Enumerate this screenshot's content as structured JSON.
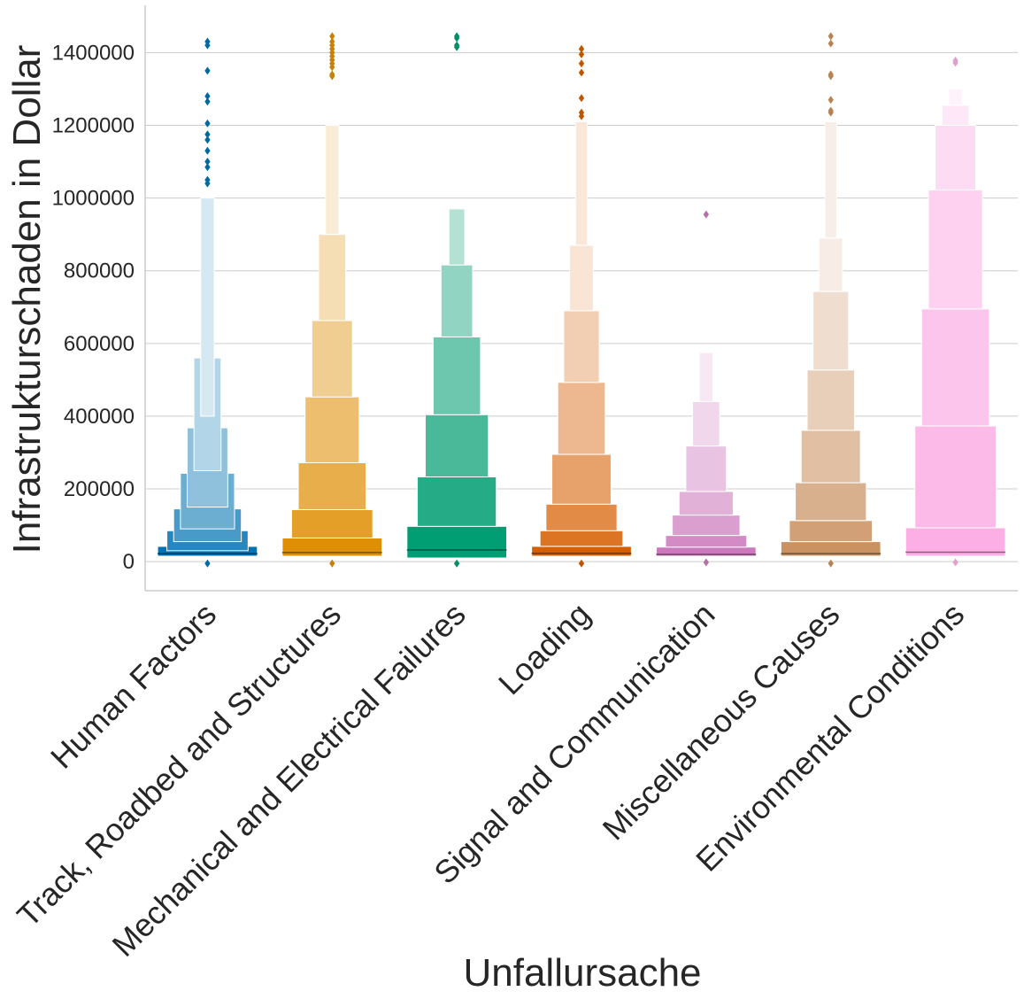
{
  "chart_data": {
    "type": "boxen",
    "xlabel": "Unfallursache",
    "ylabel": "Infrastrukturschaden in Dollar",
    "ylim": [
      -80000,
      1530000
    ],
    "yticks": [
      0,
      200000,
      400000,
      600000,
      800000,
      1000000,
      1200000,
      1400000
    ],
    "ytick_labels": [
      "0",
      "200000",
      "400000",
      "600000",
      "800000",
      "1000000",
      "1200000",
      "1400000"
    ],
    "grid": "horizontal",
    "categories": [
      "Human Factors",
      "Track, Roadbed and Structures",
      "Mechanical and Electrical Failures",
      "Loading",
      "Signal and Communication",
      "Miscellaneous Causes",
      "Environmental Conditions"
    ],
    "colors": [
      "#0173b2",
      "#de8f05",
      "#029e73",
      "#d55e00",
      "#cc78bc",
      "#ca9161",
      "#fbafe4"
    ],
    "series": [
      {
        "median": 22000,
        "boxes": [
          [
            15000,
            42000
          ],
          [
            30000,
            85000
          ],
          [
            55000,
            145000
          ],
          [
            90000,
            243000
          ],
          [
            150000,
            368000
          ],
          [
            250000,
            560000
          ],
          [
            400000,
            1000000
          ]
        ],
        "outliers": [
          1430000,
          1420000,
          1350000,
          1280000,
          1265000,
          1205000,
          1175000,
          1160000,
          1130000,
          1100000,
          1085000,
          1050000,
          1040000,
          -5000
        ]
      },
      {
        "median": 25000,
        "boxes": [
          [
            15000,
            65000
          ],
          [
            65000,
            143000
          ],
          [
            143000,
            272000
          ],
          [
            272000,
            453000
          ],
          [
            453000,
            663000
          ],
          [
            663000,
            900000
          ],
          [
            900000,
            1200000
          ]
        ],
        "outliers": [
          1445000,
          1430000,
          1420000,
          1410000,
          1400000,
          1390000,
          1380000,
          1370000,
          1360000,
          1340000,
          1335000,
          -5000
        ]
      },
      {
        "median": 32000,
        "boxes": [
          [
            10000,
            97000
          ],
          [
            97000,
            233000
          ],
          [
            233000,
            404000
          ],
          [
            404000,
            618000
          ],
          [
            618000,
            816000
          ],
          [
            816000,
            970000
          ]
        ],
        "outliers": [
          1445000,
          1440000,
          1420000,
          1415000,
          -5000
        ]
      },
      {
        "median": 23000,
        "boxes": [
          [
            15000,
            42000
          ],
          [
            42000,
            85000
          ],
          [
            85000,
            158000
          ],
          [
            158000,
            295000
          ],
          [
            295000,
            493000
          ],
          [
            493000,
            690000
          ],
          [
            690000,
            870000
          ],
          [
            870000,
            1210000
          ]
        ],
        "outliers": [
          1410000,
          1395000,
          1370000,
          1345000,
          1275000,
          1235000,
          1225000,
          -5000
        ]
      },
      {
        "median": 20000,
        "boxes": [
          [
            15000,
            40000
          ],
          [
            40000,
            72000
          ],
          [
            72000,
            128000
          ],
          [
            128000,
            193000
          ],
          [
            193000,
            318000
          ],
          [
            318000,
            440000
          ],
          [
            440000,
            575000
          ]
        ],
        "outliers": [
          955000,
          -2000
        ]
      },
      {
        "median": 22000,
        "boxes": [
          [
            15000,
            55000
          ],
          [
            55000,
            113000
          ],
          [
            113000,
            217000
          ],
          [
            217000,
            361000
          ],
          [
            361000,
            527000
          ],
          [
            527000,
            743000
          ],
          [
            743000,
            890000
          ],
          [
            890000,
            1210000
          ]
        ],
        "outliers": [
          1445000,
          1425000,
          1340000,
          1335000,
          1270000,
          1240000,
          1235000,
          -5000
        ]
      },
      {
        "median": 26000,
        "boxes": [
          [
            15000,
            93000
          ],
          [
            93000,
            373000
          ],
          [
            373000,
            695000
          ],
          [
            695000,
            1022000
          ],
          [
            1022000,
            1200000
          ],
          [
            1200000,
            1255000
          ],
          [
            1255000,
            1300000
          ]
        ],
        "outliers": [
          1378000,
          1372000,
          -2000
        ]
      }
    ]
  }
}
